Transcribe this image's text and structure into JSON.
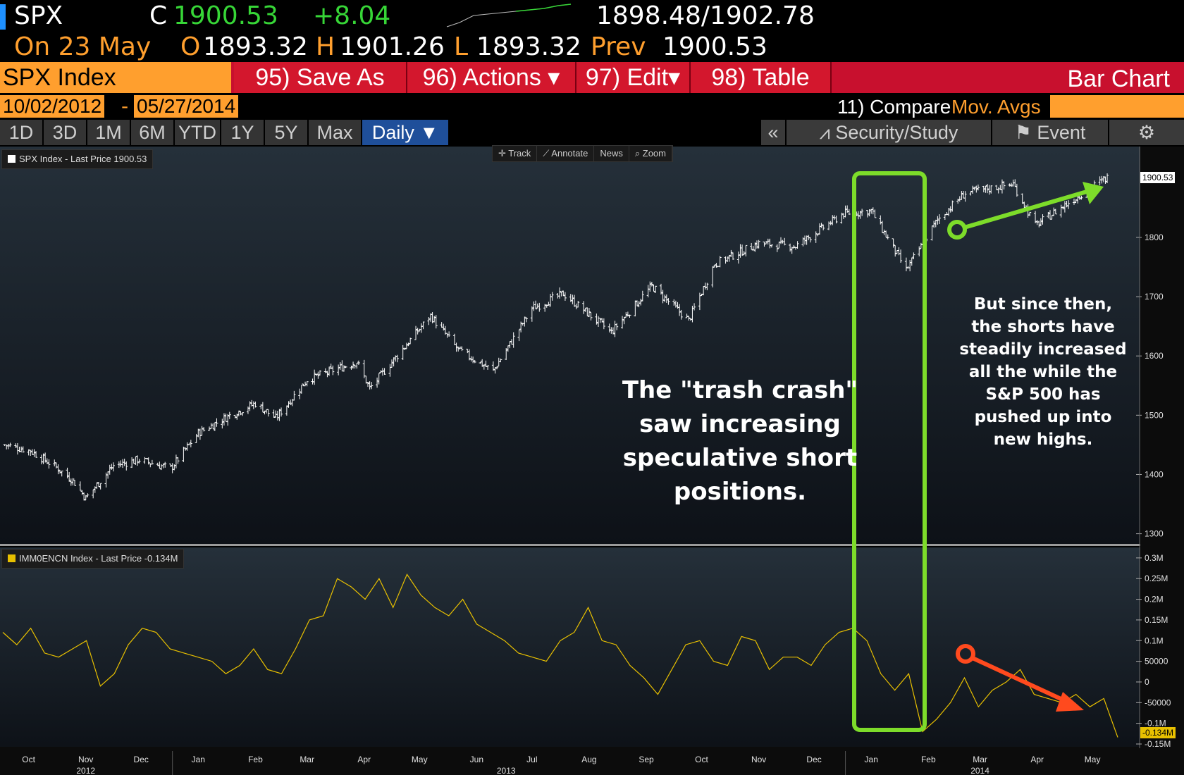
{
  "quote": {
    "ticker": "SPX",
    "close_label": "C",
    "close": "1900.53",
    "change": "+8.04",
    "bid_ask": "1898.48/1902.78",
    "date": "On 23 May",
    "open_label": "O",
    "open": "1893.32",
    "high_label": "H",
    "high": "1901.26",
    "low_label": "L",
    "low": "1893.32",
    "prev_label": "Prev",
    "prev": "1900.53"
  },
  "toolbar": {
    "security": "SPX Index",
    "save_as": "95) Save As",
    "actions": "96) Actions ▾",
    "edit": "97) Edit▾",
    "table": "98) Table",
    "chart_type": "Bar Chart"
  },
  "range": {
    "start": "10/02/2012",
    "sep": "-",
    "end": "05/27/2014",
    "compare": "11) Compare",
    "mov_avgs": "Mov. Avgs"
  },
  "periods": [
    "1D",
    "3D",
    "1M",
    "6M",
    "YTD",
    "1Y",
    "5Y",
    "Max"
  ],
  "frequency": "Daily ▼",
  "right_tabs": {
    "collapse": "«",
    "security_study": "Security/Study",
    "event": "Event",
    "settings_icon": "gear-icon"
  },
  "chart_tools": [
    "✛ Track",
    "⟋ Annotate",
    "News",
    "⌕ Zoom"
  ],
  "annotations": {
    "trash_crash": [
      "The \"trash crash\"",
      "saw increasing",
      "speculative short",
      "positions."
    ],
    "since_then": [
      "But since then,",
      "the shorts have",
      "steadily increased",
      "all the while the",
      "S&P 500 has",
      "pushed up into",
      "new highs."
    ]
  },
  "colors": {
    "accent_orange": "#ff9f2e",
    "price_line": "#ffffff",
    "positions_line": "#e8c000",
    "highlight_box": "#7ddc2a",
    "up_arrow": "#7ddc2a",
    "down_arrow": "#ff4a1e",
    "function_bar": "#c8102e"
  },
  "chart_data": [
    {
      "type": "bar",
      "legend": "SPX Index - Last Price 1900.53",
      "last_value_tag": "1900.53",
      "ylim": [
        1290,
        1920
      ],
      "yticks": [
        "1300",
        "1400",
        "1500",
        "1600",
        "1700",
        "1800"
      ],
      "x": [
        "2012-10-02",
        "2012-10-16",
        "2012-10-30",
        "2012-11-08",
        "2012-11-15",
        "2012-11-30",
        "2012-12-14",
        "2012-12-31",
        "2013-01-15",
        "2013-01-31",
        "2013-02-15",
        "2013-02-26",
        "2013-03-15",
        "2013-04-11",
        "2013-04-18",
        "2013-05-21",
        "2013-06-05",
        "2013-06-24",
        "2013-07-15",
        "2013-08-01",
        "2013-08-15",
        "2013-08-27",
        "2013-09-18",
        "2013-10-08",
        "2013-10-22",
        "2013-11-15",
        "2013-12-05",
        "2013-12-31",
        "2014-01-15",
        "2014-02-03",
        "2014-02-20",
        "2014-03-07",
        "2014-04-02",
        "2014-04-14",
        "2014-05-12",
        "2014-05-23"
      ],
      "values": [
        1450,
        1440,
        1412,
        1390,
        1360,
        1415,
        1425,
        1410,
        1470,
        1498,
        1520,
        1495,
        1560,
        1590,
        1545,
        1668,
        1610,
        1575,
        1680,
        1705,
        1670,
        1640,
        1718,
        1660,
        1755,
        1790,
        1785,
        1840,
        1845,
        1745,
        1830,
        1875,
        1890,
        1820,
        1880,
        1900.53
      ]
    },
    {
      "type": "line",
      "legend": "IMM0ENCN Index - Last Price -0.134M",
      "last_value_tag": "-0.134M",
      "ylim": [
        -0.15,
        0.31
      ],
      "yticks": [
        "0.3M",
        "0.25M",
        "0.2M",
        "0.15M",
        "0.1M",
        "50000",
        "0",
        "-50000",
        "-0.1M",
        "-0.134M",
        "-0.15M"
      ],
      "x_labels": [
        "Oct",
        "Nov",
        "Dec",
        "Jan",
        "Feb",
        "Mar",
        "Apr",
        "May",
        "Jun",
        "Jul",
        "Aug",
        "Sep",
        "Oct",
        "Nov",
        "Dec",
        "Jan",
        "Feb",
        "Mar",
        "Apr",
        "May"
      ],
      "year_labels": [
        "2012",
        "2013",
        "2014"
      ],
      "values": [
        0.12,
        0.09,
        0.13,
        0.07,
        0.06,
        0.08,
        0.1,
        -0.01,
        0.02,
        0.09,
        0.13,
        0.12,
        0.08,
        0.07,
        0.06,
        0.05,
        0.02,
        0.04,
        0.08,
        0.03,
        0.02,
        0.08,
        0.15,
        0.16,
        0.25,
        0.23,
        0.2,
        0.25,
        0.18,
        0.26,
        0.21,
        0.18,
        0.16,
        0.2,
        0.14,
        0.12,
        0.1,
        0.07,
        0.06,
        0.05,
        0.1,
        0.12,
        0.18,
        0.1,
        0.09,
        0.04,
        0.01,
        -0.03,
        0.03,
        0.09,
        0.1,
        0.05,
        0.04,
        0.11,
        0.1,
        0.03,
        0.06,
        0.06,
        0.04,
        0.09,
        0.12,
        0.13,
        0.1,
        0.02,
        -0.02,
        0.02,
        -0.12,
        -0.09,
        -0.05,
        0.01,
        -0.06,
        -0.02,
        0.0,
        0.03,
        -0.03,
        -0.04,
        -0.05,
        -0.03,
        -0.06,
        -0.04,
        -0.134
      ]
    }
  ]
}
